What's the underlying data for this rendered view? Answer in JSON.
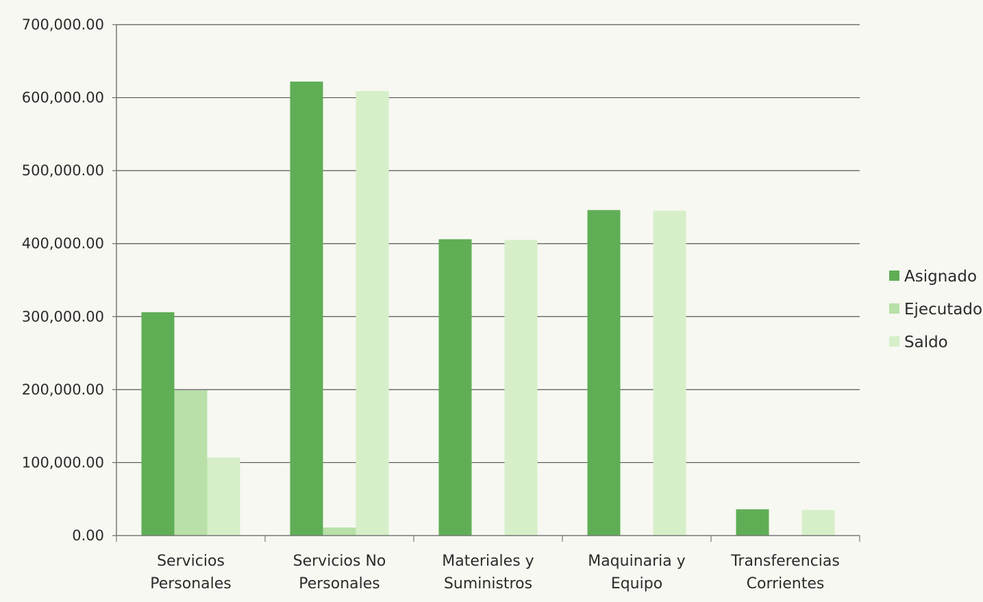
{
  "chart_data": {
    "type": "bar",
    "categories": [
      [
        "Servicios",
        "Personales"
      ],
      [
        "Servicios No",
        "Personales"
      ],
      [
        "Materiales y",
        "Suministros"
      ],
      [
        "Maquinaria y",
        "Equipo"
      ],
      [
        "Transferencias",
        "Corrientes"
      ]
    ],
    "series": [
      {
        "name": "Asignado",
        "color": "#5fae55",
        "values": [
          306000,
          622000,
          406000,
          446000,
          36000
        ]
      },
      {
        "name": "Ejecutado",
        "color": "#b8e0a8",
        "values": [
          199000,
          11000,
          0,
          0,
          0
        ]
      },
      {
        "name": "Saldo",
        "color": "#d6efc8",
        "values": [
          107000,
          609000,
          405000,
          445000,
          35000
        ]
      }
    ],
    "y_ticks": [
      "0.00",
      "100,000.00",
      "200,000.00",
      "300,000.00",
      "400,000.00",
      "500,000.00",
      "600,000.00",
      "700,000.00"
    ],
    "ylim": [
      0,
      700000
    ],
    "grid": true,
    "legend_position": "right",
    "title": "",
    "xlabel": "",
    "ylabel": ""
  }
}
